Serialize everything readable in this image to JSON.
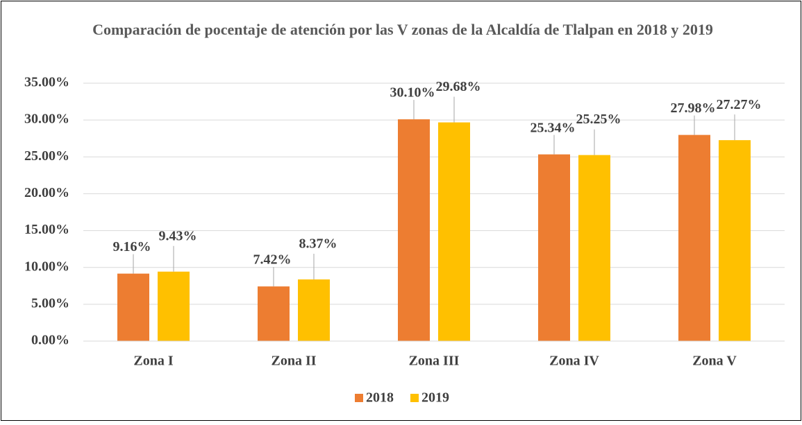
{
  "chart_data": {
    "type": "bar",
    "title": "Comparación de pocentaje de atención por las V zonas de la Alcaldía de Tlalpan en 2018 y 2019",
    "categories": [
      "Zona I",
      "Zona II",
      "Zona III",
      "Zona IV",
      "Zona V"
    ],
    "series": [
      {
        "name": "2018",
        "color": "#ED7D31",
        "values": [
          9.16,
          7.42,
          30.1,
          25.34,
          27.98
        ],
        "value_labels": [
          "9.16%",
          "7.42%",
          "30.10%",
          "25.34%",
          "27.98%"
        ]
      },
      {
        "name": "2019",
        "color": "#FFC000",
        "values": [
          9.43,
          8.37,
          29.68,
          25.25,
          27.27
        ],
        "value_labels": [
          "9.43%",
          "8.37%",
          "29.68%",
          "25.25%",
          "27.27%"
        ]
      }
    ],
    "ylim": [
      0,
      35
    ],
    "yticks": [
      {
        "value": 0,
        "label": "0.00%"
      },
      {
        "value": 5,
        "label": "5.00%"
      },
      {
        "value": 10,
        "label": "10.00%"
      },
      {
        "value": 15,
        "label": "15.00%"
      },
      {
        "value": 20,
        "label": "20.00%"
      },
      {
        "value": 25,
        "label": "25.00%"
      },
      {
        "value": 30,
        "label": "30.00%"
      },
      {
        "value": 35,
        "label": "35.00%"
      }
    ],
    "grid": true,
    "legend": "bottom"
  }
}
